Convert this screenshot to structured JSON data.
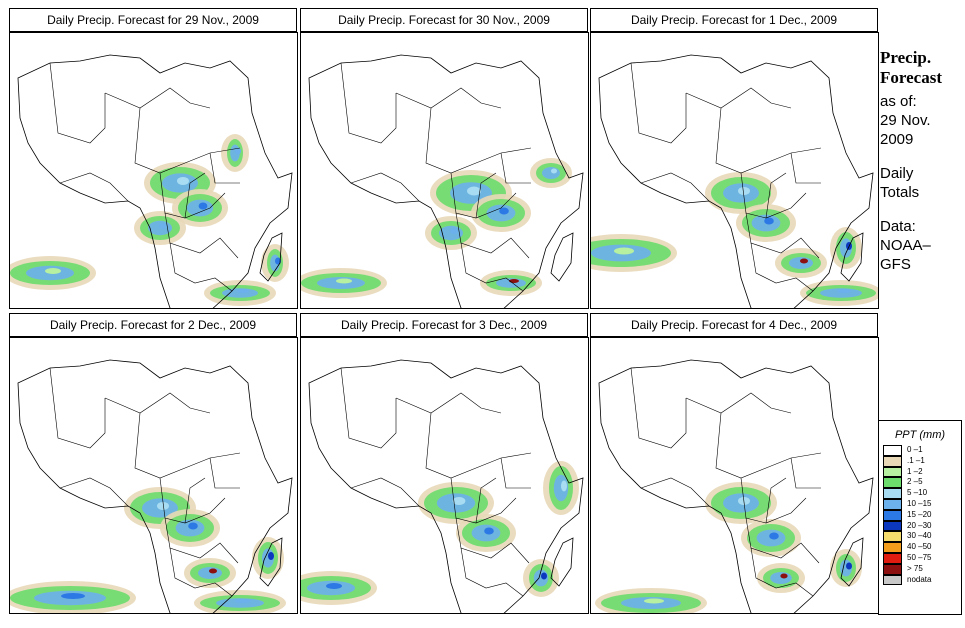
{
  "panels": [
    {
      "title": "Daily Precip. Forecast for  29 Nov., 2009"
    },
    {
      "title": "Daily Precip. Forecast for  30 Nov., 2009"
    },
    {
      "title": "Daily Precip. Forecast for  1 Dec., 2009"
    },
    {
      "title": "Daily Precip. Forecast for  2 Dec., 2009"
    },
    {
      "title": "Daily Precip. Forecast for  3 Dec., 2009"
    },
    {
      "title": "Daily Precip. Forecast for  4 Dec., 2009"
    }
  ],
  "side": {
    "heading1": "Precip.",
    "heading2": "Forecast",
    "line1": "as of:",
    "line2": "29 Nov.",
    "line3": "2009",
    "line4": "Daily",
    "line5": "Totals",
    "line6": "Data:",
    "line7": "NOAA–",
    "line8": "GFS"
  },
  "legend": {
    "title": "PPT (mm)",
    "items": [
      {
        "label": "0 –1",
        "color": "#ffffff"
      },
      {
        "label": ".1 –1",
        "color": "#e8d8b8"
      },
      {
        "label": "1 –2",
        "color": "#b6f0a0"
      },
      {
        "label": "2 –5",
        "color": "#6cdc6c"
      },
      {
        "label": "5 –10",
        "color": "#a8dcf2"
      },
      {
        "label": "10 –15",
        "color": "#6cb0ec"
      },
      {
        "label": "15 –20",
        "color": "#2c78e4"
      },
      {
        "label": "20 –30",
        "color": "#0c38c0"
      },
      {
        "label": "30 –40",
        "color": "#f6dc6c"
      },
      {
        "label": "40 –50",
        "color": "#f49c1c"
      },
      {
        "label": "50 –75",
        "color": "#e01c10"
      },
      {
        "label": "> 75",
        "color": "#8c1010"
      },
      {
        "label": "nodata",
        "color": "#c8c8c8"
      }
    ]
  }
}
